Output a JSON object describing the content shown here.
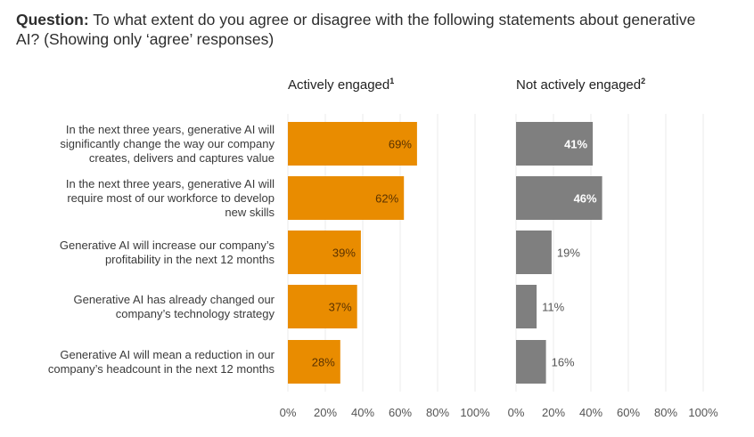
{
  "title": {
    "prefix": "Question:",
    "text": " To what extent do you agree or disagree with the following statements about generative AI? (Showing only ‘agree’ responses)"
  },
  "colors": {
    "engaged": "#E98C00",
    "not_engaged": "#7F7F7F",
    "grid": "#EBEBEB"
  },
  "chart_data": {
    "type": "bar",
    "orientation": "horizontal",
    "title": "To what extent do you agree or disagree with the following statements about generative AI? (Showing only ‘agree’ responses)",
    "categories": [
      "In the next three years, generative AI will significantly change the way our company creates, delivers and captures value",
      "In the next three years, generative AI will require most of our workforce to develop new skills",
      "Generative AI will increase our company’s profitability in the next 12 months",
      "Generative AI has already changed our company’s technology strategy",
      "Generative AI will mean a reduction in our company’s headcount in the next 12 months"
    ],
    "category_lines": [
      [
        "In the next three years, generative AI will",
        "significantly change the way our company",
        "creates, delivers and captures value"
      ],
      [
        "In the next three years, generative AI will",
        "require most of our workforce to develop",
        "new skills"
      ],
      [
        "Generative AI will increase our company’s",
        "profitability in the next 12 months"
      ],
      [
        "Generative AI has already changed our",
        "company’s technology strategy"
      ],
      [
        "Generative AI will mean a reduction in our",
        "company’s headcount in the next 12 months"
      ]
    ],
    "series": [
      {
        "name": "Actively engaged",
        "footnote": "1",
        "values": [
          69,
          62,
          39,
          37,
          28
        ],
        "labels": [
          "69%",
          "62%",
          "39%",
          "37%",
          "28%"
        ]
      },
      {
        "name": "Not actively engaged",
        "footnote": "2",
        "values": [
          41,
          46,
          19,
          11,
          16
        ],
        "labels": [
          "41%",
          "46%",
          "19%",
          "11%",
          "16%"
        ]
      }
    ],
    "xlim": [
      0,
      100
    ],
    "xticks": [
      "0%",
      "20%",
      "40%",
      "60%",
      "80%",
      "100%"
    ],
    "grid": true,
    "xlabel": "",
    "ylabel": ""
  }
}
